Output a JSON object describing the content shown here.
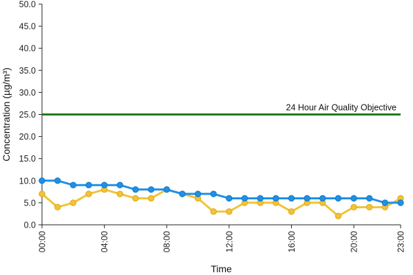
{
  "chart_data": {
    "type": "line",
    "xlabel": "Time",
    "ylabel": "Concentration (µg/m³)",
    "ylim": [
      0,
      50
    ],
    "y_ticks": [
      "0.0",
      "5.0",
      "10.0",
      "15.0",
      "20.0",
      "25.0",
      "30.0",
      "35.0",
      "40.0",
      "45.0",
      "50.0"
    ],
    "x_tick_labels": [
      "00:00",
      "04:00",
      "08:00",
      "12:00",
      "16:00",
      "20:00",
      "23:00"
    ],
    "x": [
      "00:00",
      "01:00",
      "02:00",
      "03:00",
      "04:00",
      "05:00",
      "06:00",
      "07:00",
      "08:00",
      "09:00",
      "10:00",
      "11:00",
      "12:00",
      "13:00",
      "14:00",
      "15:00",
      "16:00",
      "17:00",
      "18:00",
      "19:00",
      "20:00",
      "21:00",
      "22:00",
      "23:00"
    ],
    "series": [
      {
        "color": "#1e90e6",
        "marker_color": "#1e90e6",
        "values": [
          10,
          10,
          9,
          9,
          9,
          9,
          8,
          8,
          8,
          7,
          7,
          7,
          6,
          6,
          6,
          6,
          6,
          6,
          6,
          6,
          6,
          6,
          5,
          5
        ]
      },
      {
        "color": "#f2c335",
        "marker_color": "#f2c335",
        "values": [
          7,
          4,
          5,
          7,
          8,
          7,
          6,
          6,
          8,
          7,
          6,
          3,
          3,
          5,
          5,
          5,
          3,
          5,
          5,
          2,
          4,
          4,
          4,
          6
        ]
      }
    ],
    "reference_line": {
      "label": "24 Hour Air Quality Objective",
      "value": 25,
      "color": "#1e7b1e"
    },
    "grid": false,
    "legend": "none"
  }
}
